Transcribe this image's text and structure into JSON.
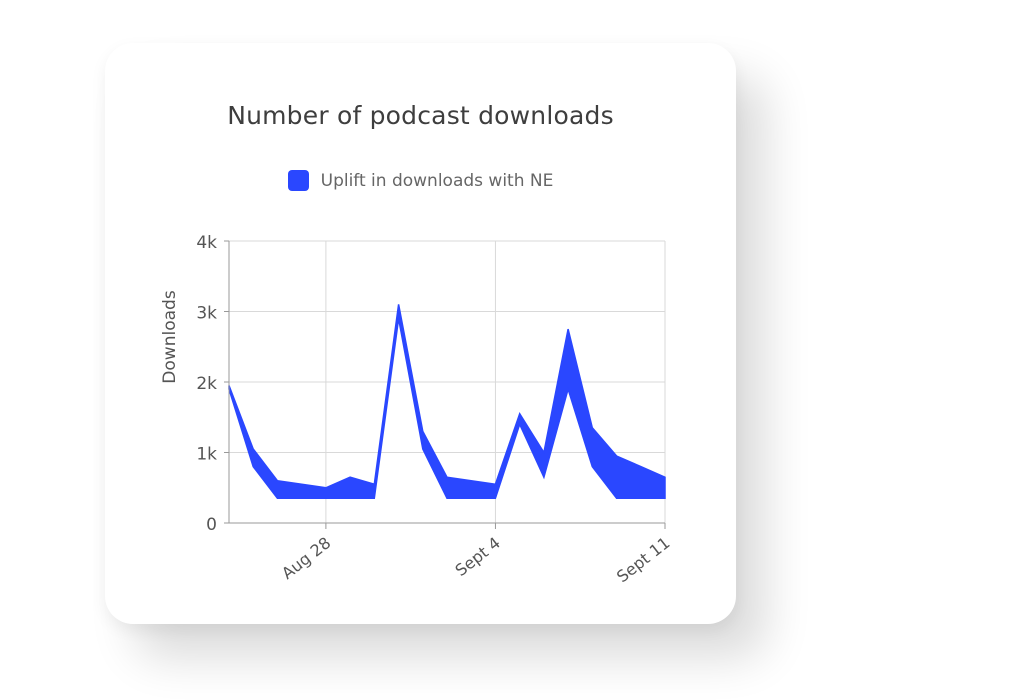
{
  "card": {
    "title": "Number of podcast downloads"
  },
  "chart_data": {
    "type": "area",
    "title": "Number of podcast downloads",
    "xlabel": "",
    "ylabel": "Downloads",
    "ylim": [
      0,
      4000
    ],
    "yticks": [
      {
        "value": 0,
        "label": "0"
      },
      {
        "value": 1000,
        "label": "1k"
      },
      {
        "value": 2000,
        "label": "2k"
      },
      {
        "value": 3000,
        "label": "3k"
      },
      {
        "value": 4000,
        "label": "4k"
      }
    ],
    "xticks": [
      {
        "index": 4,
        "label": "Aug 28"
      },
      {
        "index": 11,
        "label": "Sept 4"
      },
      {
        "index": 18,
        "label": "Sept 11"
      }
    ],
    "grid": true,
    "legend_position": "top-center",
    "x": [
      "Aug 24",
      "Aug 25",
      "Aug 26",
      "Aug 27",
      "Aug 28",
      "Aug 29",
      "Aug 30",
      "Aug 31",
      "Sept 1",
      "Sept 2",
      "Sept 3",
      "Sept 4",
      "Sept 5",
      "Sept 6",
      "Sept 7",
      "Sept 8",
      "Sept 9",
      "Sept 10",
      "Sept 11"
    ],
    "series": [
      {
        "name": "Uplift in downloads with NE",
        "color": "#2a47ff",
        "upper": [
          1950,
          1050,
          600,
          550,
          500,
          650,
          550,
          3100,
          1300,
          650,
          600,
          550,
          1550,
          1000,
          2750,
          1350,
          950,
          800,
          650
        ],
        "lower": [
          1900,
          800,
          350,
          350,
          350,
          350,
          350,
          2900,
          1050,
          350,
          350,
          350,
          1400,
          650,
          1900,
          800,
          350,
          350,
          350
        ]
      }
    ]
  }
}
